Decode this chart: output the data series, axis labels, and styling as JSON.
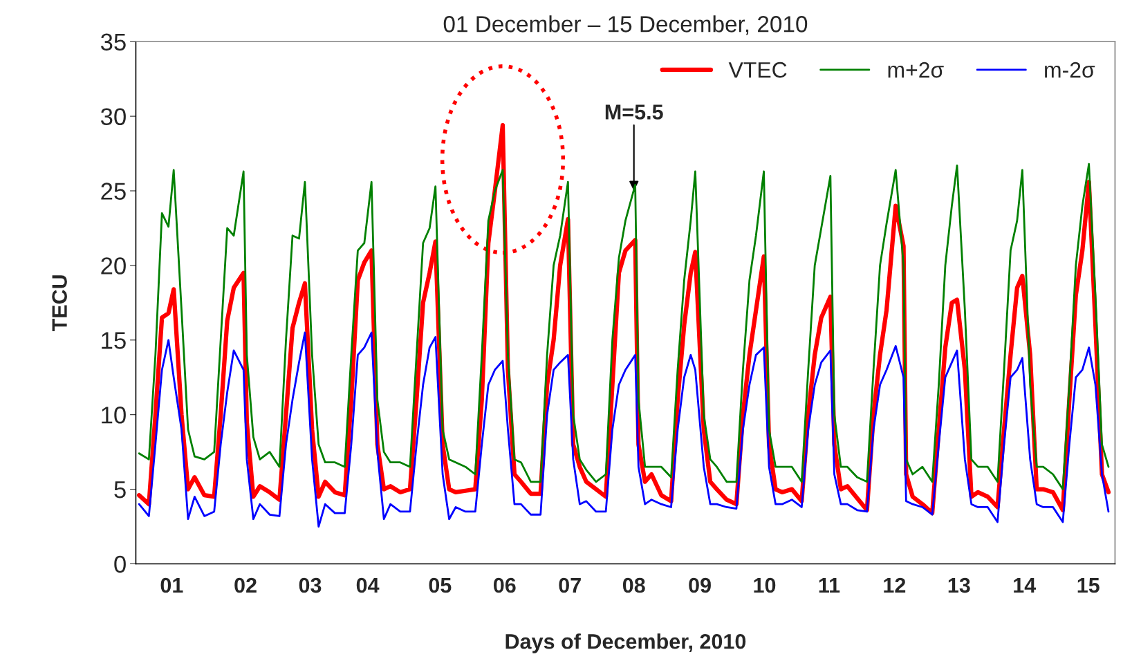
{
  "chart_data": {
    "type": "line",
    "title": "01 December – 15 December, 2010",
    "xlabel": "Days of December, 2010",
    "ylabel": "TECU",
    "x": [
      0.05,
      0.2,
      0.3,
      0.4,
      0.5,
      0.58,
      0.7,
      0.8,
      0.9,
      1.05,
      1.2,
      1.3,
      1.4,
      1.5,
      1.65,
      1.7,
      1.8,
      1.9,
      2.05,
      2.2,
      2.3,
      2.4,
      2.5,
      2.59,
      2.7,
      2.8,
      2.9,
      3.05,
      3.2,
      3.3,
      3.4,
      3.5,
      3.61,
      3.7,
      3.8,
      3.9,
      4.05,
      4.2,
      4.3,
      4.4,
      4.5,
      4.59,
      4.7,
      4.8,
      4.9,
      5.05,
      5.2,
      5.3,
      5.4,
      5.5,
      5.62,
      5.7,
      5.8,
      5.9,
      6.05,
      6.2,
      6.3,
      6.4,
      6.5,
      6.62,
      6.7,
      6.8,
      6.9,
      7.05,
      7.2,
      7.3,
      7.4,
      7.5,
      7.65,
      7.7,
      7.8,
      7.9,
      8.05,
      8.2,
      8.3,
      8.4,
      8.5,
      8.57,
      8.7,
      8.8,
      8.9,
      9.05,
      9.2,
      9.3,
      9.4,
      9.5,
      9.62,
      9.7,
      9.8,
      9.9,
      10.05,
      10.2,
      10.3,
      10.4,
      10.5,
      10.64,
      10.7,
      10.8,
      10.9,
      11.05,
      11.2,
      11.3,
      11.4,
      11.5,
      11.64,
      11.76,
      11.8,
      11.9,
      12.05,
      12.2,
      12.3,
      12.4,
      12.5,
      12.58,
      12.7,
      12.8,
      12.9,
      13.05,
      13.2,
      13.3,
      13.4,
      13.5,
      13.58,
      13.7,
      13.8,
      13.9,
      14.05,
      14.2,
      14.3,
      14.4,
      14.5,
      14.6,
      14.7,
      14.8,
      14.9
    ],
    "series": [
      {
        "name": "VTEC",
        "color": "#ff0000",
        "values": [
          4.6,
          4.0,
          10.0,
          16.5,
          16.8,
          18.4,
          10.0,
          5.0,
          5.8,
          4.6,
          4.5,
          10.0,
          16.3,
          18.5,
          19.5,
          9.5,
          4.5,
          5.2,
          4.8,
          4.3,
          10.0,
          15.8,
          17.5,
          18.8,
          9.0,
          4.5,
          5.5,
          4.8,
          4.6,
          11.0,
          19.0,
          20.2,
          21.0,
          8.0,
          5.0,
          5.2,
          4.8,
          5.0,
          11.0,
          17.5,
          19.5,
          21.6,
          8.0,
          5.0,
          4.8,
          4.9,
          5.0,
          11.0,
          21.5,
          25.0,
          29.4,
          13.0,
          6.0,
          5.5,
          4.7,
          4.7,
          12.0,
          15.0,
          20.0,
          23.1,
          8.0,
          6.5,
          5.5,
          5.0,
          4.5,
          12.0,
          19.5,
          21.0,
          21.7,
          8.0,
          5.5,
          6.0,
          4.6,
          4.2,
          11.0,
          16.0,
          19.5,
          20.9,
          9.0,
          5.5,
          5.0,
          4.3,
          4.0,
          10.0,
          14.0,
          17.0,
          20.6,
          8.0,
          5.0,
          4.8,
          5.0,
          4.2,
          10.0,
          14.0,
          16.5,
          17.9,
          8.0,
          5.0,
          5.2,
          4.4,
          3.6,
          10.0,
          14.0,
          17.0,
          24.0,
          21.3,
          6.0,
          4.5,
          4.0,
          3.4,
          9.0,
          14.5,
          17.5,
          17.7,
          13.0,
          4.5,
          4.8,
          4.5,
          3.8,
          9.0,
          14.0,
          18.5,
          19.3,
          14.0,
          5.0,
          5.0,
          4.8,
          3.6,
          11.0,
          18.0,
          21.0,
          25.6,
          16.0,
          6.0,
          4.8
        ]
      },
      {
        "name": "m+2σ",
        "color": "#008000",
        "values": [
          7.4,
          7.0,
          14.0,
          23.5,
          22.6,
          26.4,
          17.0,
          9.0,
          7.2,
          7.0,
          7.5,
          15.0,
          22.5,
          22.0,
          26.3,
          14.0,
          8.5,
          7.0,
          7.5,
          6.5,
          15.0,
          22.0,
          21.8,
          25.6,
          14.0,
          8.0,
          6.8,
          6.8,
          6.5,
          14.0,
          21.0,
          21.5,
          25.6,
          11.0,
          7.5,
          6.8,
          6.8,
          6.5,
          14.0,
          21.5,
          22.5,
          25.3,
          9.0,
          7.0,
          6.8,
          6.5,
          6.0,
          14.0,
          23.0,
          25.0,
          26.4,
          14.0,
          7.0,
          6.8,
          5.5,
          5.5,
          14.0,
          20.0,
          22.0,
          25.6,
          10.0,
          7.0,
          6.3,
          5.5,
          6.0,
          15.0,
          20.5,
          23.0,
          25.4,
          11.0,
          6.5,
          6.5,
          6.5,
          5.8,
          13.0,
          19.0,
          23.0,
          26.3,
          10.0,
          7.0,
          6.5,
          5.5,
          5.5,
          13.0,
          19.0,
          22.0,
          26.3,
          9.0,
          6.5,
          6.5,
          6.5,
          5.5,
          13.0,
          20.0,
          22.5,
          26.0,
          10.0,
          6.5,
          6.5,
          5.8,
          5.5,
          13.0,
          20.0,
          22.8,
          26.4,
          20.0,
          7.0,
          6.0,
          6.5,
          5.5,
          12.0,
          20.0,
          24.0,
          26.7,
          17.0,
          7.0,
          6.5,
          6.5,
          5.5,
          13.0,
          21.0,
          23.0,
          26.4,
          12.0,
          6.5,
          6.5,
          6.0,
          5.0,
          12.0,
          20.0,
          24.0,
          26.8,
          18.0,
          8.0,
          6.5
        ]
      },
      {
        "name": "m-2σ",
        "color": "#0000ff",
        "values": [
          4.0,
          3.2,
          8.0,
          13.0,
          15.0,
          12.5,
          9.0,
          3.0,
          4.5,
          3.2,
          3.5,
          8.0,
          11.5,
          14.3,
          13.0,
          7.0,
          3.0,
          4.0,
          3.3,
          3.2,
          8.0,
          11.0,
          13.5,
          15.5,
          7.0,
          2.5,
          4.0,
          3.4,
          3.4,
          8.0,
          14.0,
          14.5,
          15.5,
          7.5,
          3.0,
          4.0,
          3.5,
          3.5,
          8.0,
          12.0,
          14.5,
          15.2,
          6.0,
          3.0,
          3.8,
          3.5,
          3.5,
          8.0,
          12.0,
          13.0,
          13.6,
          9.0,
          4.0,
          4.0,
          3.3,
          3.3,
          10.0,
          13.0,
          13.5,
          14.0,
          7.0,
          4.0,
          4.2,
          3.5,
          3.5,
          9.0,
          12.0,
          13.0,
          14.0,
          6.5,
          4.0,
          4.3,
          4.0,
          3.8,
          9.0,
          12.5,
          14.0,
          13.0,
          6.5,
          4.0,
          4.0,
          3.8,
          3.7,
          9.0,
          12.0,
          14.0,
          14.5,
          6.5,
          4.0,
          4.0,
          4.3,
          3.8,
          9.0,
          12.0,
          13.5,
          14.3,
          6.0,
          4.0,
          4.0,
          3.6,
          3.5,
          9.0,
          12.0,
          13.0,
          14.6,
          12.5,
          4.2,
          4.0,
          3.8,
          3.3,
          8.0,
          12.5,
          13.5,
          14.3,
          7.0,
          4.0,
          3.8,
          3.8,
          2.8,
          8.0,
          12.5,
          13.0,
          13.8,
          7.0,
          4.0,
          3.8,
          3.8,
          2.8,
          8.0,
          12.5,
          13.0,
          14.5,
          12.0,
          6.0,
          3.5
        ]
      }
    ],
    "xlim": [
      0,
      15
    ],
    "xticks": [
      {
        "value": 0.55,
        "label": "01"
      },
      {
        "value": 1.68,
        "label": "02"
      },
      {
        "value": 2.67,
        "label": "03"
      },
      {
        "value": 3.55,
        "label": "04"
      },
      {
        "value": 4.66,
        "label": "05"
      },
      {
        "value": 5.65,
        "label": "06"
      },
      {
        "value": 6.65,
        "label": "07"
      },
      {
        "value": 7.63,
        "label": "08"
      },
      {
        "value": 8.64,
        "label": "09"
      },
      {
        "value": 9.63,
        "label": "10"
      },
      {
        "value": 10.62,
        "label": "11"
      },
      {
        "value": 11.62,
        "label": "12"
      },
      {
        "value": 12.61,
        "label": "13"
      },
      {
        "value": 13.61,
        "label": "14"
      },
      {
        "value": 14.59,
        "label": "15"
      }
    ],
    "ylim": [
      0,
      35
    ],
    "yticks": [
      0,
      5,
      10,
      15,
      20,
      25,
      30,
      35
    ],
    "annotations": [
      {
        "text": "M=5.5",
        "x": 7.63,
        "y": 25
      }
    ],
    "legend": "top right",
    "grid": false,
    "marker": "none",
    "line_style": "solid"
  }
}
